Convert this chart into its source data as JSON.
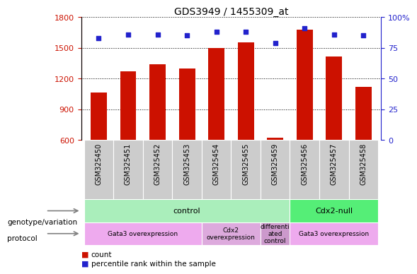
{
  "title": "GDS3949 / 1455309_at",
  "samples": [
    "GSM325450",
    "GSM325451",
    "GSM325452",
    "GSM325453",
    "GSM325454",
    "GSM325455",
    "GSM325459",
    "GSM325456",
    "GSM325457",
    "GSM325458"
  ],
  "counts": [
    1060,
    1270,
    1340,
    1300,
    1500,
    1555,
    620,
    1680,
    1415,
    1120
  ],
  "percentiles": [
    83,
    86,
    86,
    85,
    88,
    88,
    79,
    91,
    86,
    85
  ],
  "ylim_left": [
    600,
    1800
  ],
  "ylim_right": [
    0,
    100
  ],
  "yticks_left": [
    600,
    900,
    1200,
    1500,
    1800
  ],
  "yticks_right": [
    0,
    25,
    50,
    75,
    100
  ],
  "bar_color": "#cc1100",
  "dot_color": "#2222cc",
  "left_axis_color": "#cc1100",
  "right_axis_color": "#2222cc",
  "genotype_groups": [
    {
      "label": "control",
      "start": 0,
      "end": 7,
      "color": "#aaeebb"
    },
    {
      "label": "Cdx2-null",
      "start": 7,
      "end": 10,
      "color": "#55ee77"
    }
  ],
  "protocol_groups": [
    {
      "label": "Gata3 overexpression",
      "start": 0,
      "end": 4,
      "color": "#eeaaee"
    },
    {
      "label": "Cdx2\noverexpression",
      "start": 4,
      "end": 6,
      "color": "#ddaadd"
    },
    {
      "label": "differenti\nated\ncontrol",
      "start": 6,
      "end": 7,
      "color": "#cc99cc"
    },
    {
      "label": "Gata3 overexpression",
      "start": 7,
      "end": 10,
      "color": "#eeaaee"
    }
  ],
  "bar_width": 0.55,
  "xlim": [
    -0.6,
    9.6
  ]
}
